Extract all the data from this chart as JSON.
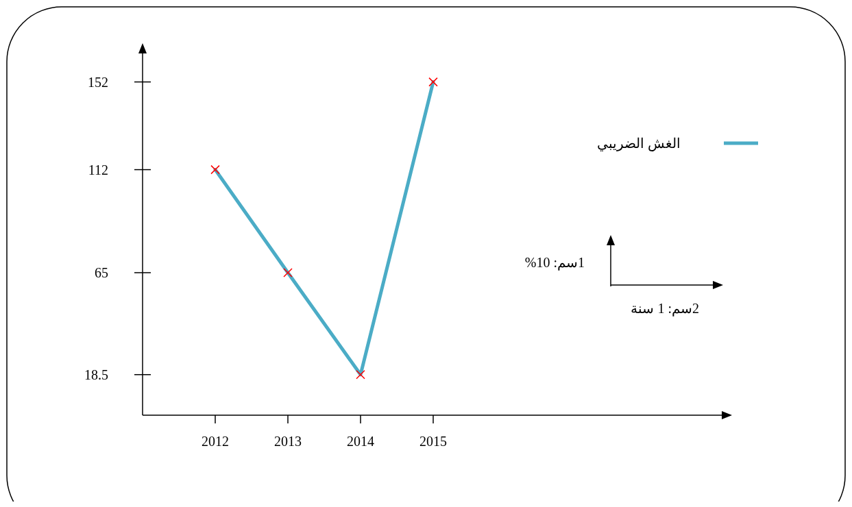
{
  "chart_data": {
    "type": "line",
    "categories": [
      "2012",
      "2013",
      "2014",
      "2015"
    ],
    "series": [
      {
        "name": "الغش الضريبي",
        "color": "#4bacc6",
        "values": [
          112,
          65,
          18.5,
          152
        ]
      }
    ],
    "ylim": [
      0,
      165
    ],
    "yticks": [
      18.5,
      65,
      112,
      152
    ],
    "marker": "cross",
    "legend": "top right",
    "grid": false,
    "annotations": [
      "1سم: 10%",
      "2سم: 1 سنة"
    ]
  }
}
